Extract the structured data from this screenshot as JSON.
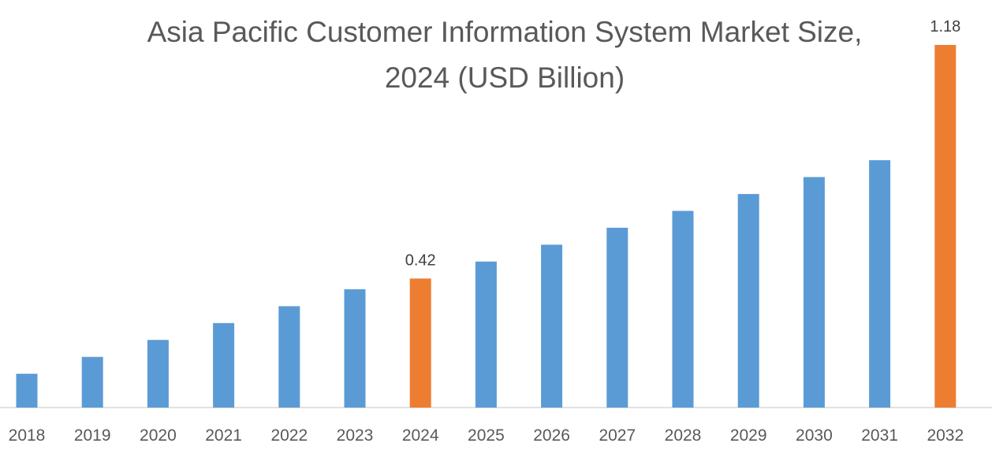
{
  "title_lines": [
    "Asia Pacific Customer Information System Market Size,",
    "2024 (USD Billion)"
  ],
  "colors": {
    "bar": "#5B9BD5",
    "highlight": "#ED7D31",
    "axis": "#D9D9D9",
    "text": "#595959"
  },
  "chart_data": {
    "type": "bar",
    "title": "Asia Pacific Customer Information System Market Size, 2024 (USD Billion)",
    "xlabel": "",
    "ylabel": "",
    "categories": [
      "2018",
      "2019",
      "2020",
      "2021",
      "2022",
      "2023",
      "2024",
      "2025",
      "2026",
      "2027",
      "2028",
      "2029",
      "2030",
      "2031",
      "2032"
    ],
    "values": [
      0.11,
      0.165,
      0.22,
      0.275,
      0.33,
      0.385,
      0.42,
      0.475,
      0.53,
      0.585,
      0.64,
      0.695,
      0.75,
      0.805,
      1.18
    ],
    "highlighted": [
      "2024",
      "2032"
    ],
    "data_labels": [
      {
        "category": "2024",
        "text": "0.42"
      },
      {
        "category": "2032",
        "text": "1.18"
      }
    ],
    "ylim": [
      0,
      1.18
    ],
    "grid": false,
    "legend": "none"
  }
}
